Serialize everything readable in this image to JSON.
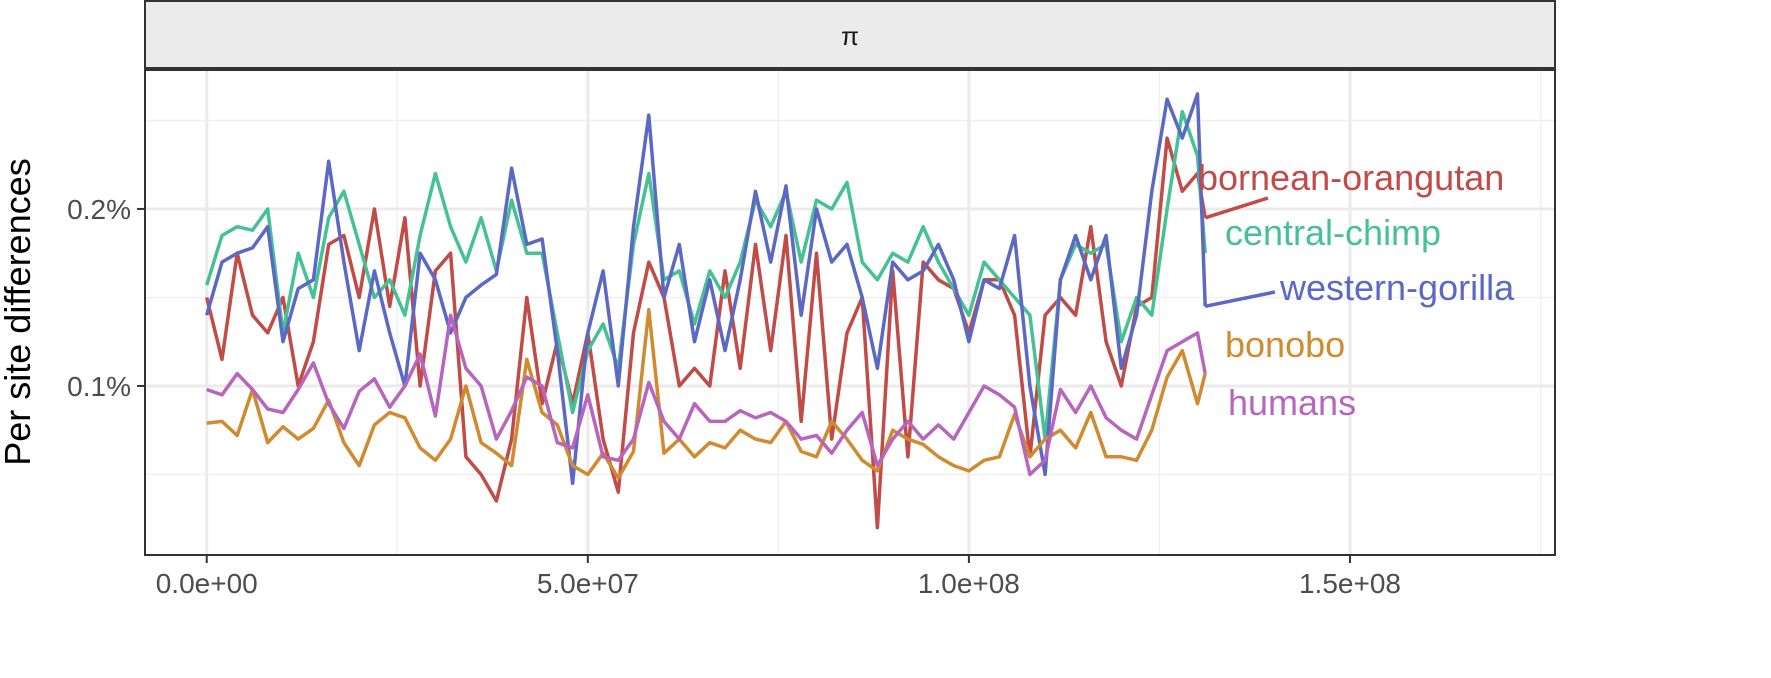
{
  "chart_data": {
    "type": "line",
    "strip_label": "π",
    "xlabel": "",
    "ylabel": "Per site differences",
    "xlim": [
      -8100000,
      176900000
    ],
    "ylim": [
      0.0045,
      0.2785
    ],
    "x_ticks": [
      0,
      50000000,
      100000000,
      150000000
    ],
    "x_tick_labels": [
      "0.0e+00",
      "5.0e+07",
      "1.0e+08",
      "1.5e+08"
    ],
    "y_ticks": [
      0.1,
      0.2
    ],
    "y_tick_labels": [
      "0.1%",
      "0.2%"
    ],
    "grid": true,
    "legend": "direct labels at right end of lines",
    "x_step": 2000000,
    "series": [
      {
        "name": "bornean-orangutan",
        "color": "#c04b47",
        "values": [
          0.15,
          0.115,
          0.175,
          0.14,
          0.13,
          0.15,
          0.1,
          0.125,
          0.18,
          0.185,
          0.15,
          0.2,
          0.145,
          0.195,
          0.1,
          0.165,
          0.175,
          0.06,
          0.05,
          0.035,
          0.07,
          0.15,
          0.09,
          0.125,
          0.09,
          0.13,
          0.07,
          0.04,
          0.13,
          0.17,
          0.15,
          0.1,
          0.11,
          0.1,
          0.165,
          0.11,
          0.18,
          0.12,
          0.185,
          0.08,
          0.175,
          0.07,
          0.13,
          0.15,
          0.02,
          0.165,
          0.06,
          0.17,
          0.16,
          0.155,
          0.13,
          0.16,
          0.16,
          0.14,
          0.06,
          0.14,
          0.15,
          0.14,
          0.19,
          0.125,
          0.1,
          0.145,
          0.15,
          0.24,
          0.21,
          0.22,
          0.195
        ]
      },
      {
        "name": "central-chimp",
        "color": "#46c195",
        "values": [
          0.157,
          0.185,
          0.19,
          0.188,
          0.2,
          0.13,
          0.175,
          0.15,
          0.195,
          0.21,
          0.18,
          0.15,
          0.16,
          0.14,
          0.185,
          0.22,
          0.19,
          0.17,
          0.195,
          0.165,
          0.205,
          0.175,
          0.175,
          0.13,
          0.085,
          0.12,
          0.135,
          0.11,
          0.18,
          0.22,
          0.16,
          0.165,
          0.135,
          0.165,
          0.15,
          0.17,
          0.205,
          0.19,
          0.21,
          0.17,
          0.205,
          0.2,
          0.215,
          0.17,
          0.16,
          0.175,
          0.17,
          0.19,
          0.17,
          0.155,
          0.14,
          0.17,
          0.16,
          0.15,
          0.14,
          0.07,
          0.16,
          0.18,
          0.175,
          0.18,
          0.125,
          0.15,
          0.14,
          0.2,
          0.255,
          0.23,
          0.175
        ]
      },
      {
        "name": "western-gorilla",
        "color": "#5c69c4",
        "values": [
          0.14,
          0.17,
          0.175,
          0.178,
          0.19,
          0.125,
          0.155,
          0.16,
          0.227,
          0.17,
          0.12,
          0.165,
          0.13,
          0.1,
          0.175,
          0.16,
          0.13,
          0.15,
          0.157,
          0.163,
          0.223,
          0.18,
          0.183,
          0.12,
          0.045,
          0.13,
          0.165,
          0.1,
          0.19,
          0.253,
          0.15,
          0.18,
          0.125,
          0.16,
          0.12,
          0.16,
          0.21,
          0.17,
          0.213,
          0.14,
          0.2,
          0.17,
          0.18,
          0.15,
          0.11,
          0.17,
          0.16,
          0.165,
          0.18,
          0.16,
          0.125,
          0.16,
          0.155,
          0.185,
          0.1,
          0.05,
          0.16,
          0.185,
          0.16,
          0.185,
          0.11,
          0.14,
          0.21,
          0.262,
          0.24,
          0.265,
          0.145
        ]
      },
      {
        "name": "bonobo",
        "color": "#d08a30",
        "values": [
          0.079,
          0.08,
          0.072,
          0.098,
          0.068,
          0.077,
          0.07,
          0.076,
          0.092,
          0.068,
          0.055,
          0.078,
          0.085,
          0.082,
          0.065,
          0.058,
          0.07,
          0.1,
          0.068,
          0.062,
          0.055,
          0.115,
          0.085,
          0.078,
          0.055,
          0.05,
          0.062,
          0.048,
          0.063,
          0.143,
          0.062,
          0.07,
          0.06,
          0.068,
          0.065,
          0.075,
          0.07,
          0.068,
          0.08,
          0.063,
          0.06,
          0.08,
          0.07,
          0.058,
          0.052,
          0.075,
          0.07,
          0.067,
          0.06,
          0.055,
          0.052,
          0.058,
          0.06,
          0.084,
          0.06,
          0.07,
          0.075,
          0.065,
          0.085,
          0.06,
          0.06,
          0.058,
          0.075,
          0.105,
          0.12,
          0.09,
          0.107
        ]
      },
      {
        "name": "humans",
        "color": "#b765bd",
        "values": [
          0.098,
          0.095,
          0.107,
          0.098,
          0.087,
          0.085,
          0.098,
          0.113,
          0.09,
          0.076,
          0.097,
          0.104,
          0.088,
          0.1,
          0.118,
          0.083,
          0.14,
          0.11,
          0.1,
          0.07,
          0.086,
          0.105,
          0.1,
          0.068,
          0.065,
          0.095,
          0.06,
          0.058,
          0.07,
          0.102,
          0.08,
          0.07,
          0.09,
          0.08,
          0.08,
          0.086,
          0.082,
          0.085,
          0.08,
          0.07,
          0.072,
          0.062,
          0.075,
          0.085,
          0.055,
          0.07,
          0.08,
          0.07,
          0.078,
          0.07,
          0.085,
          0.1,
          0.095,
          0.088,
          0.05,
          0.058,
          0.098,
          0.085,
          0.1,
          0.082,
          0.075,
          0.07,
          0.095,
          0.12,
          0.125,
          0.13,
          0.107
        ]
      }
    ]
  }
}
